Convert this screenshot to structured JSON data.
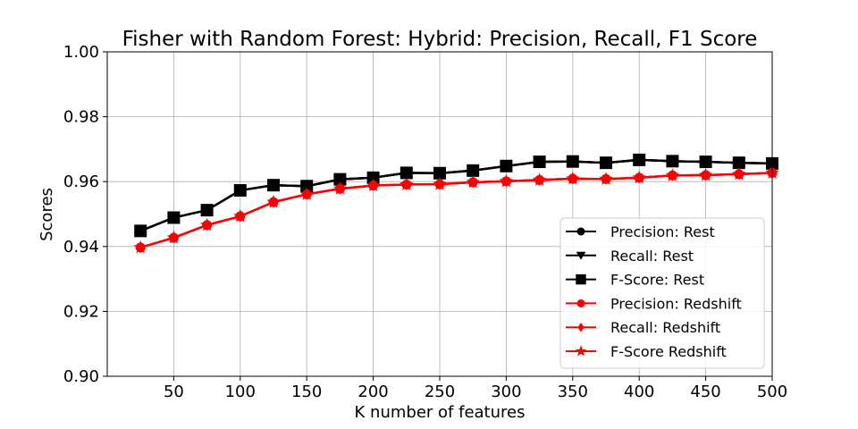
{
  "chart_data": {
    "type": "line",
    "title": "Fisher with Random Forest: Hybrid: Precision, Recall, F1 Score",
    "xlabel": "K number of features",
    "ylabel": "Scores",
    "xlim": [
      0,
      500
    ],
    "ylim": [
      0.9,
      1.0
    ],
    "xticks": [
      50,
      100,
      150,
      200,
      250,
      300,
      350,
      400,
      450,
      500
    ],
    "yticks": [
      "0.90",
      "0.92",
      "0.94",
      "0.96",
      "0.98",
      "1.00"
    ],
    "grid": true,
    "legend_position": "lower-right",
    "x": [
      25,
      50,
      75,
      100,
      125,
      150,
      175,
      200,
      225,
      250,
      275,
      300,
      325,
      350,
      375,
      400,
      425,
      450,
      475,
      500
    ],
    "series": [
      {
        "name": "Precision: Rest",
        "color": "#000000",
        "marker": "circle",
        "values": [
          0.9448,
          0.9489,
          0.9512,
          0.9573,
          0.9589,
          0.9586,
          0.9607,
          0.9612,
          0.9627,
          0.9626,
          0.9634,
          0.9648,
          0.9661,
          0.9662,
          0.9658,
          0.9667,
          0.9663,
          0.9661,
          0.9658,
          0.9656
        ]
      },
      {
        "name": "Recall: Rest",
        "color": "#000000",
        "marker": "triangle-down",
        "values": [
          0.9448,
          0.9489,
          0.9512,
          0.9573,
          0.9589,
          0.9586,
          0.9607,
          0.9612,
          0.9627,
          0.9626,
          0.9634,
          0.9648,
          0.9661,
          0.9662,
          0.9658,
          0.9667,
          0.9663,
          0.9661,
          0.9658,
          0.9656
        ]
      },
      {
        "name": "F-Score: Rest",
        "color": "#000000",
        "marker": "square",
        "values": [
          0.9448,
          0.9489,
          0.9512,
          0.9573,
          0.9589,
          0.9586,
          0.9607,
          0.9612,
          0.9627,
          0.9626,
          0.9634,
          0.9648,
          0.9661,
          0.9662,
          0.9658,
          0.9667,
          0.9663,
          0.9661,
          0.9658,
          0.9656
        ]
      },
      {
        "name": "Precision: Redshift",
        "color": "#ff0000",
        "marker": "circle",
        "values": [
          0.9397,
          0.9427,
          0.9466,
          0.9493,
          0.9537,
          0.9561,
          0.9578,
          0.9588,
          0.9591,
          0.9592,
          0.9598,
          0.9601,
          0.9605,
          0.9609,
          0.9608,
          0.9612,
          0.9619,
          0.962,
          0.9623,
          0.9627
        ]
      },
      {
        "name": "Recall: Redshift",
        "color": "#ff0000",
        "marker": "diamond",
        "values": [
          0.9397,
          0.9427,
          0.9466,
          0.9493,
          0.9537,
          0.9561,
          0.9578,
          0.9588,
          0.9591,
          0.9592,
          0.9598,
          0.9601,
          0.9605,
          0.9609,
          0.9608,
          0.9612,
          0.9619,
          0.962,
          0.9623,
          0.9627
        ]
      },
      {
        "name": "F-Score Redshift",
        "color": "#ff0000",
        "marker": "star",
        "values": [
          0.9397,
          0.9427,
          0.9466,
          0.9493,
          0.9537,
          0.9561,
          0.9578,
          0.9588,
          0.9591,
          0.9592,
          0.9598,
          0.9601,
          0.9605,
          0.9609,
          0.9608,
          0.9612,
          0.9619,
          0.962,
          0.9623,
          0.9627
        ]
      }
    ]
  }
}
